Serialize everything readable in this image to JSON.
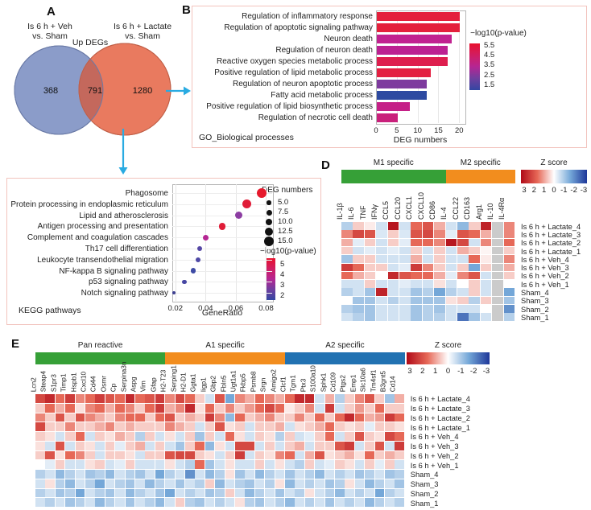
{
  "panels": {
    "a": {
      "letter": "A",
      "venn": {
        "left_group_line1": "Is 6 h + Veh",
        "left_group_line2": "vs. Sham",
        "right_group_line1": "Is 6 h + Lactate",
        "right_group_line2": "vs. Sham",
        "center_title": "Up DEGs",
        "left_only": "368",
        "overlap": "791",
        "right_only": "1280",
        "left_color": "#8b9cc9",
        "right_color": "#e97a5f",
        "overlap_color": "#c4685c"
      }
    },
    "b": {
      "letter": "B"
    },
    "c": {
      "letter": "C"
    },
    "d": {
      "letter": "D"
    },
    "e": {
      "letter": "E"
    }
  },
  "palette": {
    "arrow": "#29abe2",
    "panel_border": "#f2c3bd",
    "na_cell": "#cbcbcb",
    "heat_pos": [
      "#ffffff",
      "#e66857",
      "#b00a18"
    ],
    "heat_neg": [
      "#ffffff",
      "#74a7d8",
      "#1e3799"
    ]
  },
  "chart_data": [
    {
      "id": "go_bar",
      "type": "bar",
      "footer": "GO_Biological processes",
      "xlabel": "DEG numbers",
      "x_ticks": [
        0,
        5,
        10,
        15,
        20
      ],
      "xlim": [
        0,
        21.3
      ],
      "legend": {
        "title": "−log10(p-value)",
        "ticks": [
          "5.5",
          "4.5",
          "3.5",
          "2.5",
          "1.5"
        ],
        "gradient": [
          "#e8112d",
          "#d11d62",
          "#b52693",
          "#6f3f9f",
          "#3346a2"
        ]
      },
      "categories": [
        "Regulation of inflammatory response",
        "Regulation of apoptotic signaling pathway",
        "Neuron death",
        "Regulation of neuron death",
        "Reactive oxygen species metabolic process",
        "Positive regulation of lipid metabolic process",
        "Regulation of neuron apoptotic process",
        "Fatty acid metabolic process",
        "Positive regulation of lipid biosynthetic process",
        "Regulation of necrotic cell death"
      ],
      "values": [
        20,
        20,
        18,
        17,
        17,
        13,
        12,
        12,
        8,
        5
      ],
      "bar_colors": [
        "#e4203c",
        "#e4203c",
        "#c12190",
        "#bc2192",
        "#de1e4e",
        "#e31f41",
        "#7e3a9e",
        "#2d4aa1",
        "#c52087",
        "#c9207b"
      ]
    },
    {
      "id": "kegg_dot",
      "type": "scatter",
      "footer": "KEGG pathways",
      "xlabel": "GeneRatio",
      "x_ticks": [
        0.02,
        0.04,
        0.06,
        0.08
      ],
      "xlim": [
        0.018,
        0.084
      ],
      "size_legend": {
        "title": "DEG numbers",
        "labels": [
          "5.0",
          "7.5",
          "10.0",
          "12.5",
          "15.0"
        ],
        "values": [
          5,
          7.5,
          10,
          12.5,
          15
        ]
      },
      "color_legend": {
        "title": "−log10(p-value)",
        "ticks": [
          "5",
          "4",
          "3",
          "2"
        ],
        "gradient": [
          "#e8112d",
          "#d11d62",
          "#b52693",
          "#6f3f9f",
          "#3346a2"
        ]
      },
      "categories": [
        "Phagosome",
        "Protein processing in endoplasmic reticulum",
        "Lipid and atherosclerosis",
        "Antigen processing and presentation",
        "Complement and coagulation cascades",
        "Th17 cell differentiation",
        "Leukocyte transendothelial migration",
        "NF-kappa B signaling pathway",
        "p53 signaling pathway",
        "Notch signaling pathway"
      ],
      "gene_ratio": [
        0.077,
        0.067,
        0.062,
        0.051,
        0.04,
        0.036,
        0.035,
        0.032,
        0.026,
        0.019
      ],
      "deg_numbers": [
        15,
        13,
        11,
        9.5,
        7.5,
        6.5,
        6.5,
        6.5,
        5.5,
        3
      ],
      "dot_colors": [
        "#e6192c",
        "#e01c38",
        "#8c3da2",
        "#e01c38",
        "#b52693",
        "#5547a5",
        "#4f49a6",
        "#3e4ba5",
        "#4746a3",
        "#3d3f90"
      ]
    },
    {
      "id": "microglia_m1_m2_heatmap",
      "type": "heatmap",
      "groups": [
        {
          "label": "M1 specific",
          "color": "#36a037",
          "span": 9
        },
        {
          "label": "M2 specific",
          "color": "#f28d1e",
          "span": 6
        }
      ],
      "zscore": {
        "title": "Z score",
        "ticks": [
          "3",
          "2",
          "1",
          "0",
          "-1",
          "-2",
          "-3"
        ],
        "gradient": [
          "#b00a18",
          "#e66857",
          "#ffffff",
          "#74a7d8",
          "#1e3799"
        ]
      },
      "columns": [
        "IL-1β",
        "IL-6",
        "TNF",
        "IFNγ",
        "CCL5",
        "CCL20",
        "CXCL1",
        "CXCL10",
        "CD86",
        "IL-4",
        "CCL22",
        "CD163",
        "Arg1",
        "IL-10",
        "IL-4Rα"
      ],
      "rows": [
        "Is 6 h + Lactate_4",
        "Is 6 h + Lactate_3",
        "Is 6 h + Lactate_2",
        "Is 6 h + Lactate_1",
        "Is 6 h + Veh_4",
        "Is 6 h + Veh_3",
        "Is 6 h + Veh_2",
        "Is 6 h + Veh_1",
        "Sham_4",
        "Sham_3",
        "Sham_2",
        "Sham_1"
      ],
      "values": [
        [
          -0.8,
          0.5,
          0.2,
          -0.5,
          2.8,
          -0.5,
          1.5,
          1.8,
          0.8,
          -0.5,
          -1.2,
          0.5,
          2.6,
          null,
          1.2
        ],
        [
          1.2,
          2.0,
          1.8,
          -0.4,
          0.5,
          -0.4,
          1.8,
          2.0,
          1.2,
          -0.3,
          1.8,
          1.5,
          0.8,
          null,
          1.2
        ],
        [
          0.8,
          -0.3,
          0.5,
          -0.5,
          0.5,
          -0.3,
          1.5,
          1.5,
          1.2,
          2.8,
          2.0,
          -0.5,
          1.2,
          null,
          1.5
        ],
        [
          0.5,
          -0.5,
          -0.3,
          -0.5,
          -0.3,
          -0.5,
          0.5,
          -0.5,
          0.5,
          -0.5,
          0.8,
          0.5,
          0.1,
          null,
          0.5
        ],
        [
          -1.0,
          0.5,
          0.5,
          -0.5,
          -0.5,
          -0.5,
          0.8,
          -0.5,
          0.5,
          -0.5,
          -0.5,
          1.5,
          0.2,
          null,
          1.2
        ],
        [
          2.2,
          1.5,
          0.5,
          0.5,
          -0.5,
          -0.3,
          2.2,
          1.2,
          0.5,
          -0.5,
          0.5,
          -1.5,
          0.5,
          null,
          0.8
        ],
        [
          1.5,
          0.8,
          0.5,
          0.0,
          2.5,
          1.8,
          1.5,
          1.5,
          0.8,
          -0.3,
          1.2,
          1.8,
          -0.5,
          null,
          0.5
        ],
        [
          -0.5,
          -0.5,
          0.5,
          -0.5,
          -0.5,
          -0.3,
          -0.5,
          -0.5,
          0.3,
          -0.5,
          0.0,
          0.5,
          -0.5,
          null,
          0.0
        ],
        [
          -0.8,
          -0.5,
          -1.0,
          2.6,
          -0.5,
          -0.5,
          -1.0,
          -0.8,
          -1.5,
          -0.8,
          -0.5,
          0.5,
          -0.5,
          null,
          -1.5
        ],
        [
          0.0,
          -1.0,
          -1.0,
          -0.5,
          -0.8,
          -0.5,
          -1.0,
          -1.0,
          -1.0,
          0.3,
          0.5,
          -0.8,
          0.5,
          null,
          -1.0
        ],
        [
          -0.8,
          -1.0,
          -1.0,
          -0.5,
          -0.5,
          -0.5,
          -1.0,
          -0.8,
          -1.0,
          -0.5,
          -0.5,
          -0.5,
          0.0,
          null,
          -1.8
        ],
        [
          -0.5,
          -0.8,
          -1.0,
          -0.5,
          -0.5,
          -0.5,
          -1.0,
          -0.8,
          -0.8,
          -0.5,
          -2.2,
          -1.0,
          -0.5,
          null,
          -0.8
        ]
      ]
    },
    {
      "id": "astrocyte_reactive_heatmap",
      "type": "heatmap",
      "groups": [
        {
          "label": "Pan reactive",
          "color": "#36a037",
          "span": 13
        },
        {
          "label": "A1 specific",
          "color": "#f28d1e",
          "span": 12
        },
        {
          "label": "A2 specific",
          "color": "#2272b2",
          "span": 12
        }
      ],
      "zscore": {
        "title": "Z score",
        "ticks": [
          "3",
          "2",
          "1",
          "0",
          "-1",
          "-2",
          "-3"
        ],
        "gradient": [
          "#b00a18",
          "#e66857",
          "#ffffff",
          "#74a7d8",
          "#1e3799"
        ]
      },
      "columns": [
        "Lcn2",
        "Steap4",
        "S1pr3",
        "Timp1",
        "Hspb1",
        "Cxcl10",
        "Cd44",
        "Osmr",
        "Cp",
        "Serpina3n",
        "Aspg",
        "Vim",
        "Gfap",
        "H2-T23",
        "Serping1",
        "H2-D1",
        "Ggta1",
        "Iigp1",
        "Gbp2",
        "Fbln5",
        "Ugt1a1",
        "Fkbp5",
        "Psmb8",
        "Srgn",
        "Amigo2",
        "Clcf1",
        "Tgm1",
        "Ptx3",
        "S100a10",
        "Sphk1",
        "Cd109",
        "Ptgs2",
        "Emp1",
        "Slc10a6",
        "Tm4sf1",
        "B3gnt5",
        "Cd14"
      ],
      "rows": [
        "Is 6 h + Lactate_4",
        "Is 6 h + Lactate_3",
        "Is 6 h + Lactate_2",
        "Is 6 h + Lactate_1",
        "Is 6 h + Veh_4",
        "Is 6 h + Veh_3",
        "Is 6 h + Veh_2",
        "Is 6 h + Veh_1",
        "Sham_4",
        "Sham_3",
        "Sham_2",
        "Sham_1"
      ],
      "values": [
        [
          2.0,
          2.5,
          1.5,
          2.2,
          1.2,
          1.5,
          2.2,
          1.8,
          1.5,
          2.5,
          1.5,
          1.8,
          2.2,
          1.2,
          2.0,
          1.5,
          0.5,
          -0.5,
          1.8,
          -1.5,
          1.2,
          0.8,
          1.5,
          1.2,
          0.8,
          1.5,
          2.5,
          2.5,
          -0.5,
          0.8,
          -0.8,
          0.5,
          1.2,
          1.8,
          0.5,
          -1.0,
          0.8
        ],
        [
          0.5,
          1.5,
          0.8,
          1.5,
          0.3,
          1.2,
          1.5,
          0.8,
          1.5,
          1.2,
          0.5,
          1.5,
          2.2,
          0.8,
          1.2,
          2.5,
          0.3,
          1.5,
          0.5,
          1.2,
          0.5,
          1.0,
          1.5,
          2.0,
          1.5,
          0.2,
          0.5,
          1.2,
          -0.5,
          2.2,
          -0.5,
          0.5,
          1.0,
          0.5,
          1.5,
          0.5,
          0.5
        ],
        [
          1.2,
          0.5,
          1.8,
          0.5,
          1.8,
          1.2,
          0.8,
          0.5,
          1.2,
          1.5,
          1.5,
          0.5,
          1.5,
          1.8,
          0.5,
          0.8,
          0.5,
          2.2,
          1.2,
          -1.2,
          1.5,
          0.5,
          0.8,
          1.2,
          0.5,
          0.5,
          1.2,
          0.5,
          1.5,
          0.5,
          1.5,
          2.5,
          1.5,
          0.8,
          1.0,
          2.2,
          1.5
        ],
        [
          2.0,
          0.5,
          0.5,
          1.2,
          0.5,
          0.5,
          0.8,
          1.2,
          0.5,
          0.8,
          0.5,
          0.5,
          0.5,
          1.2,
          0.8,
          0.5,
          -0.5,
          0.5,
          1.8,
          0.3,
          0.5,
          -0.5,
          0.5,
          0.5,
          0.8,
          -0.5,
          0.3,
          0.5,
          0.8,
          1.5,
          0.5,
          0.3,
          0.5,
          -0.3,
          0.5,
          0.5,
          0.3
        ],
        [
          0.5,
          0.3,
          -0.5,
          0.5,
          1.5,
          -0.5,
          0.5,
          0.3,
          0.8,
          0.5,
          -0.8,
          0.5,
          -0.5,
          0.3,
          -0.5,
          0.5,
          -1.0,
          0.5,
          -0.5,
          1.5,
          0.3,
          -0.5,
          0.5,
          0.3,
          -0.8,
          0.5,
          -0.5,
          -0.3,
          0.5,
          1.5,
          -0.5,
          0.5,
          1.8,
          0.5,
          0.3,
          2.0,
          1.5
        ],
        [
          0.3,
          -0.5,
          1.8,
          -0.5,
          0.5,
          0.3,
          -0.5,
          0.5,
          -0.3,
          0.5,
          0.8,
          -0.5,
          0.5,
          -0.5,
          -1.0,
          0.5,
          1.5,
          -1.2,
          0.3,
          -0.5,
          2.0,
          2.0,
          -0.5,
          0.5,
          -0.5,
          0.5,
          0.8,
          -0.5,
          0.5,
          0.5,
          1.8,
          2.2,
          -0.5,
          0.5,
          1.8,
          -0.5,
          2.2
        ],
        [
          0.5,
          1.8,
          0.3,
          1.5,
          1.2,
          0.5,
          -0.5,
          0.5,
          0.5,
          0.3,
          -0.5,
          0.5,
          0.5,
          1.8,
          2.0,
          2.0,
          0.5,
          0.3,
          -0.5,
          0.5,
          2.2,
          -0.5,
          0.5,
          0.3,
          1.2,
          1.5,
          -0.5,
          0.8,
          1.8,
          0.3,
          0.5,
          0.8,
          0.3,
          1.5,
          0.5,
          0.8,
          0.5
        ],
        [
          0.0,
          -0.3,
          0.5,
          -0.5,
          -0.5,
          0.3,
          0.5,
          -0.5,
          -0.3,
          0.5,
          -0.5,
          -0.5,
          -0.5,
          0.3,
          -0.5,
          -0.8,
          1.5,
          -1.0,
          -0.5,
          0.3,
          -0.5,
          -0.5,
          0.5,
          -0.5,
          0.3,
          -0.5,
          -0.8,
          0.5,
          -0.5,
          -0.3,
          0.5,
          0.3,
          -0.5,
          0.5,
          -0.3,
          0.5,
          -0.5
        ],
        [
          -0.8,
          -0.5,
          -1.2,
          -0.8,
          -0.5,
          -1.0,
          -0.8,
          -1.2,
          -0.5,
          -0.8,
          -1.0,
          -0.5,
          -1.5,
          -0.8,
          -0.5,
          -1.8,
          -0.5,
          -1.2,
          -0.8,
          0.3,
          -1.0,
          -0.5,
          -1.2,
          -0.8,
          -0.5,
          -1.0,
          -0.5,
          -0.8,
          -1.2,
          -0.5,
          -0.8,
          -0.5,
          -1.0,
          -0.8,
          -0.5,
          -1.0,
          -0.8
        ],
        [
          -0.5,
          0.3,
          -0.8,
          -1.2,
          -0.5,
          -0.8,
          -1.5,
          -0.5,
          -0.8,
          -1.0,
          -0.5,
          -1.2,
          -0.8,
          -0.5,
          -1.0,
          -0.5,
          -0.8,
          0.5,
          -1.2,
          -0.5,
          -0.8,
          -1.0,
          -0.5,
          -0.8,
          0.3,
          -1.2,
          -0.5,
          -0.8,
          -0.5,
          -1.0,
          -0.8,
          0.3,
          -0.5,
          -1.2,
          -0.8,
          -0.5,
          -1.0
        ],
        [
          -0.8,
          -0.5,
          -1.0,
          -0.8,
          -1.5,
          -0.5,
          -0.8,
          -1.0,
          -0.5,
          -1.2,
          -0.8,
          -0.5,
          -1.0,
          -1.5,
          -0.5,
          -0.8,
          -0.5,
          -1.0,
          -0.8,
          0.5,
          -0.5,
          -1.2,
          -0.8,
          -0.5,
          -1.0,
          -0.5,
          -0.8,
          0.3,
          -0.5,
          -0.8,
          -1.2,
          -0.5,
          -0.8,
          -0.5,
          -1.5,
          -0.8,
          -0.5
        ],
        [
          -0.5,
          -0.8,
          -0.5,
          -1.0,
          -0.8,
          -0.5,
          -1.2,
          -0.8,
          -0.5,
          -1.0,
          -0.5,
          -0.8,
          -1.2,
          -0.5,
          0.5,
          -0.8,
          -1.0,
          -0.5,
          -0.8,
          -0.5,
          0.3,
          -0.8,
          -1.0,
          -0.5,
          -0.8,
          -1.2,
          -0.5,
          -0.8,
          -0.5,
          -1.0,
          -0.5,
          -0.8,
          -0.5,
          -1.2,
          -0.8,
          -0.5,
          -0.8
        ]
      ]
    }
  ]
}
